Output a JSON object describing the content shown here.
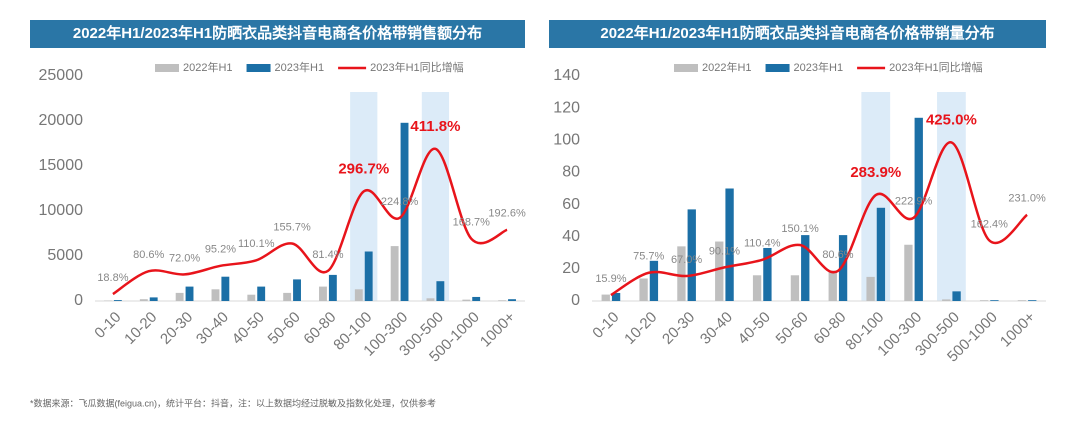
{
  "chart_data": [
    {
      "type": "bar",
      "title": "2022年H1/2023年H1防晒衣品类抖音电商各价格带销售额分布",
      "categories": [
        "0-10",
        "10-20",
        "20-30",
        "30-40",
        "40-50",
        "50-60",
        "60-80",
        "80-100",
        "100-300",
        "300-500",
        "500-1000",
        "1000+"
      ],
      "series": [
        {
          "name": "2022年H1",
          "type": "bar",
          "color": "#bfbfbf",
          "values": [
            50,
            200,
            900,
            1300,
            700,
            900,
            1600,
            1300,
            6100,
            300,
            150,
            80
          ]
        },
        {
          "name": "2023年H1",
          "type": "bar",
          "color": "#1b6fa6",
          "values": [
            100,
            400,
            1600,
            2700,
            1600,
            2400,
            2900,
            5500,
            19800,
            2200,
            450,
            200
          ]
        },
        {
          "name": "2023年H1同比增幅",
          "type": "line",
          "axis": "y2",
          "color": "#e8141b",
          "values": [
            18.8,
            80.6,
            72.0,
            95.2,
            110.1,
            155.7,
            81.4,
            296.7,
            224.8,
            411.8,
            168.7,
            192.6
          ],
          "value_labels": [
            "18.8%",
            "80.6%",
            "72.0%",
            "95.2%",
            "110.1%",
            "155.7%",
            "81.4%",
            "296.7%",
            "224.8%",
            "411.8%",
            "168.7%",
            "192.6%"
          ]
        }
      ],
      "ylim": [
        0,
        25000
      ],
      "yticks": [
        0,
        5000,
        10000,
        15000,
        20000,
        25000
      ],
      "y2lim": [
        0,
        609
      ],
      "highlight": [
        7,
        9
      ],
      "grid": false
    },
    {
      "type": "bar",
      "title": "2022年H1/2023年H1防晒衣品类抖音电商各价格带销量分布",
      "categories": [
        "0-10",
        "10-20",
        "20-30",
        "30-40",
        "40-50",
        "50-60",
        "60-80",
        "80-100",
        "100-300",
        "300-500",
        "500-1000",
        "1000+"
      ],
      "series": [
        {
          "name": "2022年H1",
          "type": "bar",
          "color": "#bfbfbf",
          "values": [
            4,
            14,
            34,
            37,
            16,
            16,
            19,
            15,
            35,
            1,
            0.5,
            0.5
          ]
        },
        {
          "name": "2023年H1",
          "type": "bar",
          "color": "#1b6fa6",
          "values": [
            5,
            25,
            57,
            70,
            33,
            41,
            41,
            58,
            114,
            6,
            0.5,
            0.5
          ]
        },
        {
          "name": "2023年H1同比增幅",
          "type": "line",
          "axis": "y2",
          "color": "#e8141b",
          "values": [
            15.9,
            75.7,
            67.0,
            90.1,
            110.4,
            150.1,
            80.6,
            283.9,
            222.9,
            425.0,
            162.4,
            231.0
          ],
          "value_labels": [
            "15.9%",
            "75.7%",
            "67.0%",
            "90.1%",
            "110.4%",
            "150.1%",
            "80.6%",
            "283.9%",
            "222.9%",
            "425.0%",
            "162.4%",
            "231.0%"
          ]
        }
      ],
      "ylim": [
        0,
        140
      ],
      "yticks": [
        0,
        20,
        40,
        60,
        80,
        100,
        120,
        140
      ],
      "y2lim": [
        0,
        603
      ],
      "highlight": [
        7,
        9
      ],
      "grid": false
    }
  ],
  "source": "*数据来源：飞瓜数据(feigua.cn)，统计平台：抖音，注：以上数据均经过脱敏及指数化处理，仅供参考"
}
